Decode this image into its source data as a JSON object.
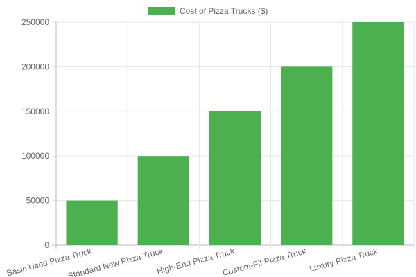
{
  "chart_data": {
    "type": "bar",
    "categories": [
      "Basic Used Pizza Truck",
      "Standard New Pizza Truck",
      "High-End Pizza Truck",
      "Custom-Fit Pizza Truck",
      "Luxury Pizza Truck"
    ],
    "series": [
      {
        "name": "Cost of Pizza Trucks ($)",
        "color": "#4caf50",
        "values": [
          50000,
          100000,
          150000,
          200000,
          250000
        ]
      }
    ],
    "ylim": [
      0,
      250000
    ],
    "yticks": [
      0,
      50000,
      100000,
      150000,
      200000,
      250000
    ],
    "grid": true,
    "legend": "top"
  }
}
